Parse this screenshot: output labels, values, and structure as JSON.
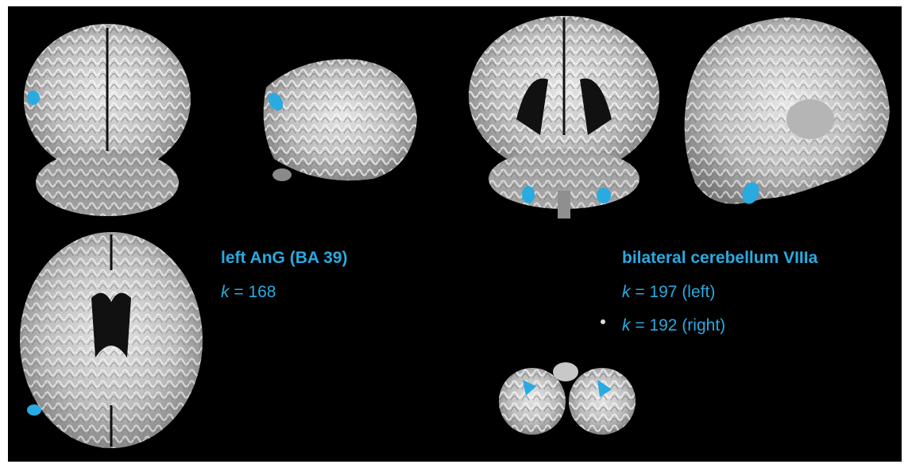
{
  "clusters": [
    {
      "label": "left AnG (BA 39)",
      "sizes": [
        {
          "symbol": "k",
          "text": "= 168"
        }
      ]
    },
    {
      "label": "bilateral cerebellum VIIIa",
      "sizes": [
        {
          "symbol": "k",
          "text": "= 197 (left)"
        },
        {
          "symbol": "k",
          "text": "= 192 (right)"
        }
      ]
    }
  ]
}
